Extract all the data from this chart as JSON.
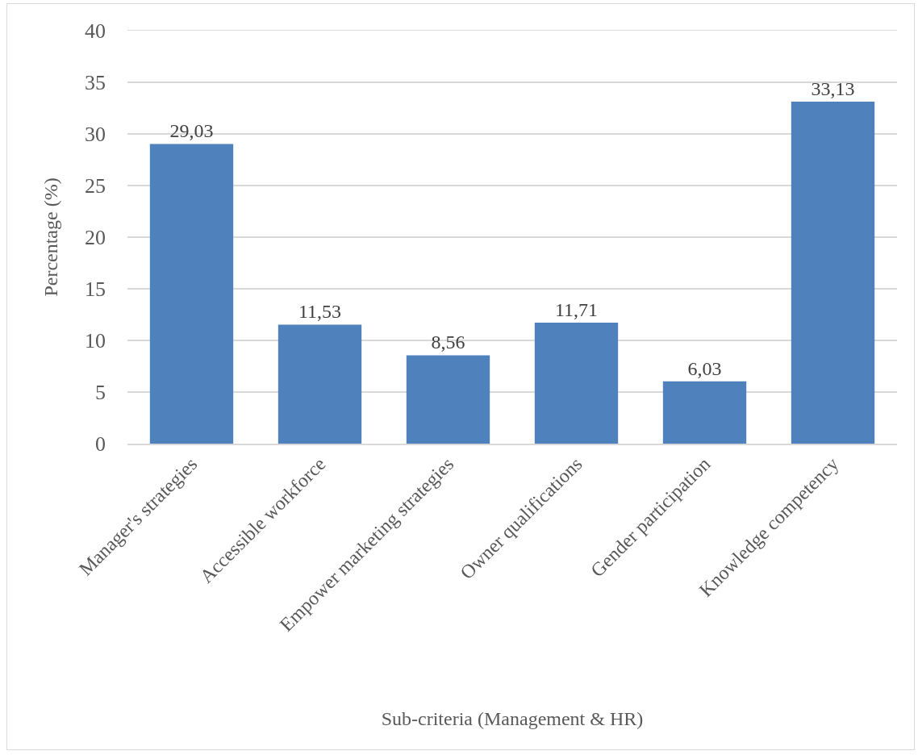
{
  "chart_data": {
    "type": "bar",
    "xlabel": "Sub-criteria (Management & HR)",
    "ylabel": "Percentage (%)",
    "categories": [
      "Manager's strategies",
      "Accessible workforce",
      "Empower marketing strategies",
      "Owner qualifications",
      "Gender participation",
      "Knowledge competency"
    ],
    "values": [
      29.03,
      11.53,
      8.56,
      11.71,
      6.03,
      33.13
    ],
    "value_labels": [
      "29,03",
      "11,53",
      "8,56",
      "11,71",
      "6,03",
      "33,13"
    ],
    "color": "#4f81bd",
    "ylim": [
      0,
      40
    ],
    "yticks": [
      0,
      5,
      10,
      15,
      20,
      25,
      30,
      35,
      40
    ],
    "grid": "y"
  }
}
